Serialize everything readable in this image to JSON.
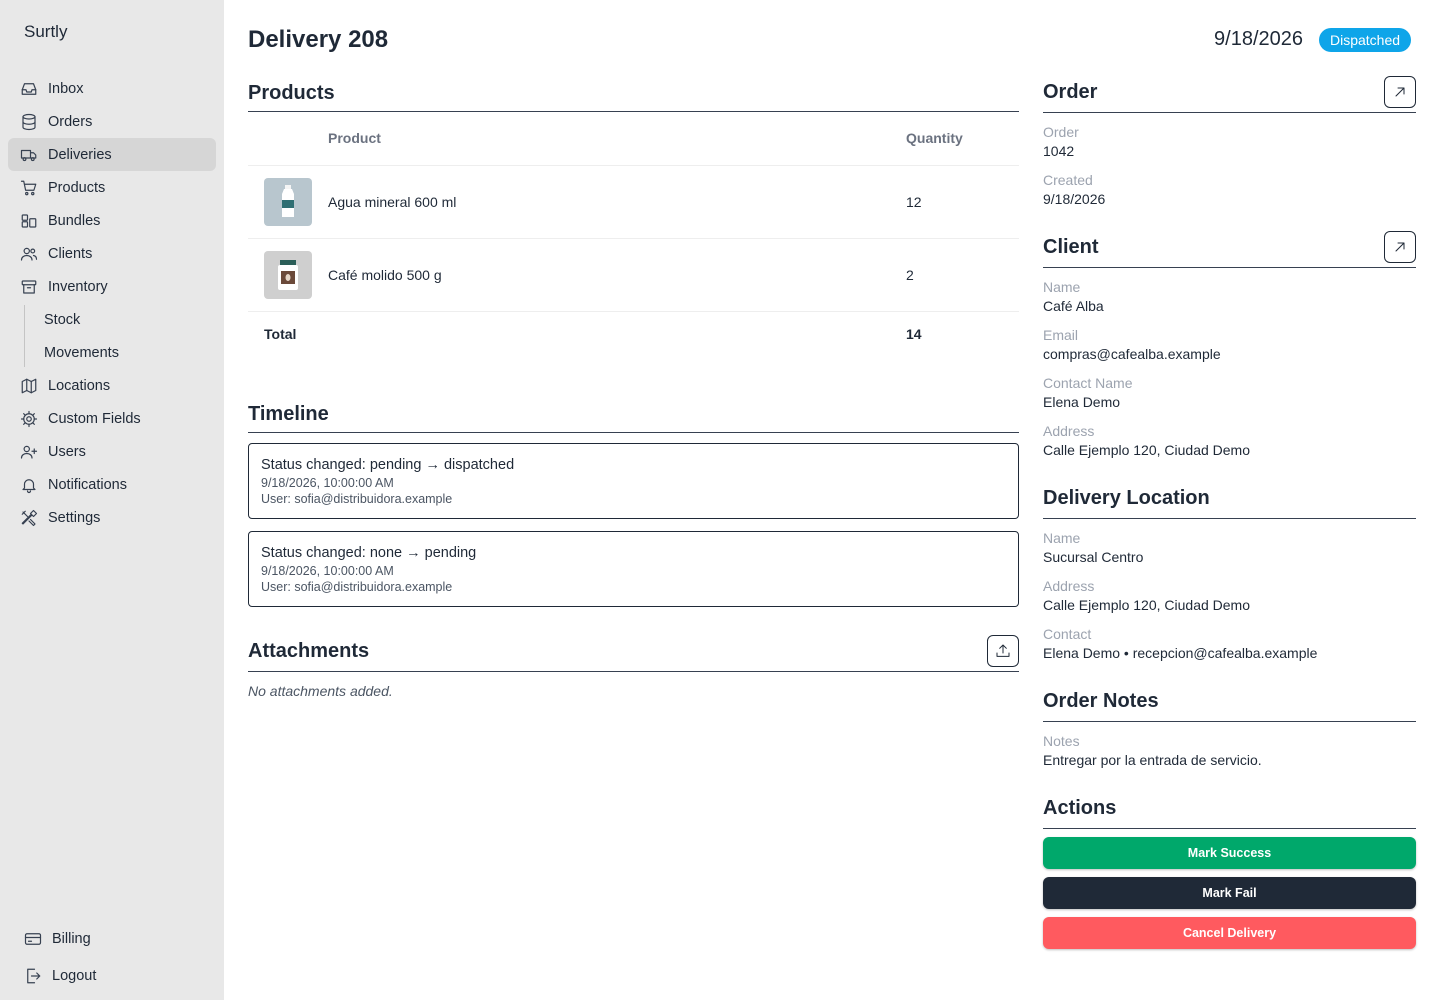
{
  "app": {
    "brand": "Surtly"
  },
  "sidebar": {
    "items": [
      {
        "label": "Inbox",
        "icon": "inbox-icon"
      },
      {
        "label": "Orders",
        "icon": "database-icon"
      },
      {
        "label": "Deliveries",
        "icon": "truck-icon",
        "active": true
      },
      {
        "label": "Products",
        "icon": "cart-icon"
      },
      {
        "label": "Bundles",
        "icon": "bundles-icon"
      },
      {
        "label": "Clients",
        "icon": "users-icon"
      },
      {
        "label": "Inventory",
        "icon": "archive-icon"
      }
    ],
    "inventory_sub": [
      {
        "label": "Stock"
      },
      {
        "label": "Movements"
      }
    ],
    "items2": [
      {
        "label": "Locations",
        "icon": "map-icon"
      },
      {
        "label": "Custom Fields",
        "icon": "cog-icon"
      },
      {
        "label": "Users",
        "icon": "user-plus-icon"
      },
      {
        "label": "Notifications",
        "icon": "bell-icon"
      },
      {
        "label": "Settings",
        "icon": "tools-icon"
      }
    ],
    "bottom": [
      {
        "label": "Billing",
        "icon": "credit-card-icon"
      },
      {
        "label": "Logout",
        "icon": "logout-icon"
      }
    ]
  },
  "header": {
    "title": "Delivery 208",
    "date": "9/18/2026",
    "status": "Dispatched",
    "status_color": "#0ea5e9"
  },
  "products": {
    "title": "Products",
    "columns": {
      "product": "Product",
      "quantity": "Quantity"
    },
    "rows": [
      {
        "name": "Agua mineral 600 ml",
        "quantity": "12",
        "thumb": "water-bottle-icon"
      },
      {
        "name": "Café molido 500 g",
        "quantity": "2",
        "thumb": "coffee-jar-icon"
      }
    ],
    "total_label": "Total",
    "total_value": "14"
  },
  "timeline": {
    "title": "Timeline",
    "events": [
      {
        "status": "Status changed: pending → dispatched",
        "time": "9/18/2026, 10:00:00 AM",
        "user": "User: sofia@distribuidora.example"
      },
      {
        "status": "Status changed: none → pending",
        "time": "9/18/2026, 10:00:00 AM",
        "user": "User: sofia@distribuidora.example"
      }
    ]
  },
  "attachments": {
    "title": "Attachments",
    "empty": "No attachments added."
  },
  "order": {
    "title": "Order",
    "order_label": "Order",
    "order_value": "1042",
    "created_label": "Created",
    "created_value": "9/18/2026"
  },
  "client": {
    "title": "Client",
    "name_label": "Name",
    "name_value": "Café Alba",
    "email_label": "Email",
    "email_value": "compras@cafealba.example",
    "contact_label": "Contact Name",
    "contact_value": "Elena Demo",
    "address_label": "Address",
    "address_value": "Calle Ejemplo 120, Ciudad Demo"
  },
  "location": {
    "title": "Delivery Location",
    "name_label": "Name",
    "name_value": "Sucursal Centro",
    "address_label": "Address",
    "address_value": "Calle Ejemplo 120, Ciudad Demo",
    "contact_label": "Contact",
    "contact_value": "Elena Demo • recepcion@cafealba.example"
  },
  "notes": {
    "title": "Order Notes",
    "notes_label": "Notes",
    "notes_value": "Entregar por la entrada de servicio."
  },
  "actions": {
    "title": "Actions",
    "success": "Mark Success",
    "fail": "Mark Fail",
    "cancel": "Cancel Delivery",
    "colors": {
      "success": "#00a86b",
      "fail": "#1f2937",
      "cancel": "#ff5a5f"
    }
  }
}
